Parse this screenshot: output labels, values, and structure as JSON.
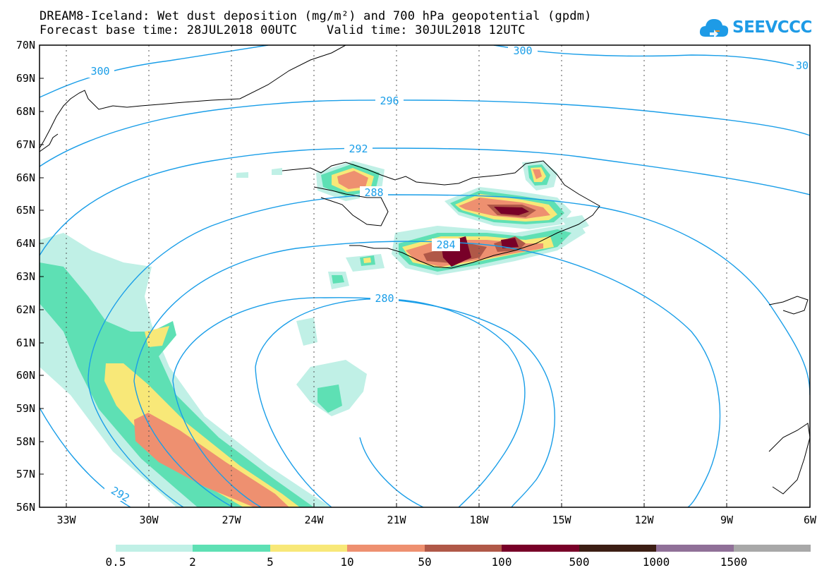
{
  "header": {
    "title_line1": "DREAM8-Iceland: Wet dust deposition (mg/m²) and 700 hPa geopotential (gpdm)",
    "title_line2": "Forecast base time: 28JUL2018 00UTC    Valid time: 30JUL2018 12UTC"
  },
  "logo": {
    "text": "SEEVCCC",
    "icon": "cloud-icon",
    "color": "#1e9be6"
  },
  "map": {
    "lat_labels": [
      "70N",
      "69N",
      "68N",
      "67N",
      "66N",
      "65N",
      "64N",
      "63N",
      "62N",
      "61N",
      "60N",
      "59N",
      "58N",
      "57N",
      "56N"
    ],
    "lon_labels": [
      "33W",
      "30W",
      "27W",
      "24W",
      "21W",
      "18W",
      "15W",
      "12W",
      "9W",
      "6W"
    ],
    "contour_labels": [
      "300",
      "300",
      "30",
      "296",
      "292",
      "288",
      "284",
      "280",
      "292"
    ],
    "contour_color": "#1a9ee8",
    "coast_color": "#000000"
  },
  "legend": {
    "ticks": [
      "0.5",
      "2",
      "5",
      "10",
      "50",
      "100",
      "500",
      "1000",
      "1500"
    ],
    "colors": [
      "#c0f0e6",
      "#5ee0b4",
      "#f8e878",
      "#ee9070",
      "#b05848",
      "#780028",
      "#3c1e14",
      "#907098",
      "#a8a8a8"
    ]
  }
}
